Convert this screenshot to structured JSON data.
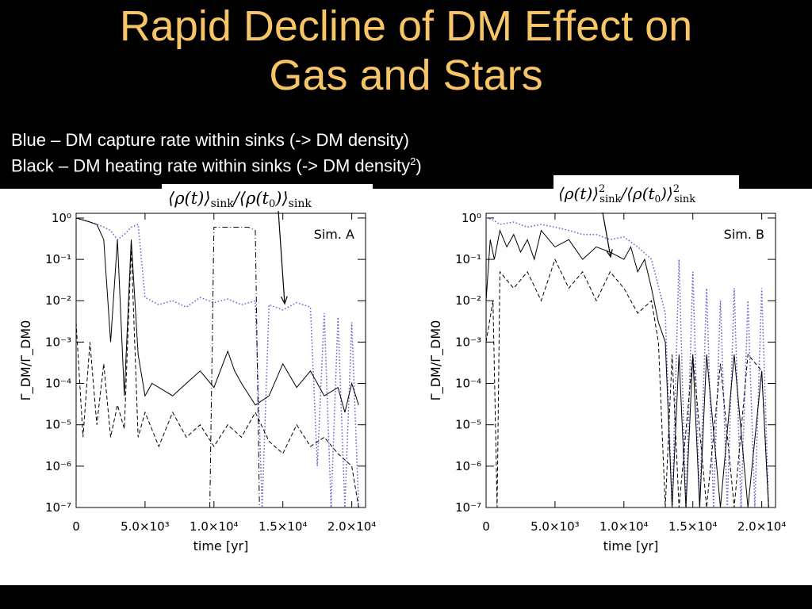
{
  "slide": {
    "title_line1": "Rapid Decline of DM Effect on",
    "title_line2": "Gas and Stars",
    "legend_blue": "Blue  – DM capture rate within sinks (-> DM density)",
    "legend_black_pre": "Black – DM  heating rate within sinks (-> DM density",
    "legend_black_sup": "2",
    "legend_black_post": ")",
    "formula_left": "⟨ρ(t)⟩sink/⟨ρ(t0)⟩sink",
    "formula_right": "⟨ρ(t)⟩²sink/⟨ρ(t0)⟩²sink"
  },
  "colors": {
    "title": "#f7c566",
    "blue_series": "#5b5bd6",
    "black_series": "#000000"
  },
  "chart_data": [
    {
      "type": "line",
      "panel_label": "Sim. A",
      "xlabel": "time [yr]",
      "ylabel": "Γ_DM/Γ_DM0",
      "y_scale": "log",
      "xlim": [
        0,
        21000
      ],
      "ylim": [
        1e-07,
        1.3
      ],
      "x_ticks": [
        "0",
        "5.0×10³",
        "1.0×10⁴",
        "1.5×10⁴",
        "2.0×10⁴"
      ],
      "y_ticks": [
        "10⁰",
        "10⁻¹",
        "10⁻²",
        "10⁻³",
        "10⁻⁴",
        "10⁻⁵",
        "10⁻⁶",
        "10⁻⁷"
      ],
      "series": [
        {
          "style": "dotted-blue",
          "x": [
            0,
            500,
            1000,
            1500,
            2000,
            2500,
            3000,
            3500,
            4000,
            4500,
            5000,
            6000,
            7000,
            8000,
            9000,
            10000,
            11000,
            12000,
            13000,
            13500,
            14000,
            15000,
            16000,
            17000,
            17500,
            18000,
            18500,
            19000,
            19500,
            20000,
            20500
          ],
          "y": [
            1,
            0.9,
            0.8,
            0.7,
            0.6,
            0.5,
            0.3,
            0.4,
            0.6,
            0.7,
            0.012,
            0.008,
            0.01,
            0.007,
            0.012,
            0.009,
            0.011,
            0.008,
            0.01,
            1e-07,
            0.008,
            0.006,
            0.009,
            0.007,
            1e-06,
            0.005,
            1e-07,
            0.004,
            1e-07,
            0.003,
            1e-07
          ]
        },
        {
          "style": "solid",
          "x": [
            0,
            1000,
            1500,
            2000,
            2500,
            3000,
            3500,
            4000,
            4500,
            5000,
            5500,
            6000,
            7000,
            8000,
            9000,
            10000,
            11000,
            11500,
            12000,
            13000,
            14000,
            15000,
            16000,
            17000,
            18000,
            19000,
            19500,
            20000,
            20500
          ],
          "y": [
            1,
            0.8,
            0.7,
            0.3,
            0.001,
            0.3,
            5e-05,
            0.3,
            0.0005,
            5e-05,
            0.0001,
            8e-05,
            5e-05,
            0.0001,
            0.0002,
            8e-05,
            0.0006,
            0.0002,
            0.0001,
            3e-05,
            5e-05,
            0.0003,
            8e-05,
            0.0002,
            5e-05,
            8e-05,
            2e-05,
            0.0001,
            3e-05
          ]
        },
        {
          "style": "dashed",
          "x": [
            0,
            500,
            1000,
            1500,
            2000,
            2500,
            3000,
            3500,
            4000,
            4500,
            5000,
            6000,
            7000,
            8000,
            9000,
            10000,
            11000,
            12000,
            13000,
            14000,
            15000,
            16000,
            17000,
            18000,
            19000,
            20000,
            20500
          ],
          "y": [
            0.003,
            5e-06,
            0.001,
            1e-05,
            0.0003,
            5e-06,
            3e-05,
            8e-06,
            0.2,
            5e-06,
            2e-05,
            3e-06,
            2e-05,
            5e-06,
            1e-05,
            3e-06,
            1e-05,
            5e-06,
            2e-05,
            4e-06,
            2e-06,
            1e-05,
            3e-06,
            5e-06,
            2e-06,
            1e-06,
            1e-07
          ]
        },
        {
          "style": "dash-dot",
          "x": [
            9700,
            10000,
            10500,
            11500,
            12500,
            13000,
            13300
          ],
          "y": [
            1e-07,
            0.6,
            0.6,
            0.6,
            0.6,
            0.5,
            1e-07
          ]
        }
      ]
    },
    {
      "type": "line",
      "panel_label": "Sim. B",
      "xlabel": "time [yr]",
      "ylabel": "Γ_DM/Γ_DM0",
      "y_scale": "log",
      "xlim": [
        0,
        21000
      ],
      "ylim": [
        1e-07,
        1.3
      ],
      "x_ticks": [
        "0",
        "5.0×10³",
        "1.0×10⁴",
        "1.5×10⁴",
        "2.0×10⁴"
      ],
      "y_ticks": [
        "10⁰",
        "10⁻¹",
        "10⁻²",
        "10⁻³",
        "10⁻⁴",
        "10⁻⁵",
        "10⁻⁶",
        "10⁻⁷"
      ],
      "series": [
        {
          "style": "dotted-blue",
          "x": [
            0,
            500,
            1000,
            2000,
            3000,
            4000,
            5000,
            6000,
            7000,
            8000,
            9000,
            10000,
            11000,
            12000,
            13000,
            13500,
            14000,
            14500,
            15000,
            15500,
            16000,
            16500,
            17000,
            17500,
            18000,
            18500,
            19000,
            19500,
            20000,
            20500
          ],
          "y": [
            1,
            0.9,
            0.7,
            0.8,
            0.6,
            0.7,
            0.6,
            0.5,
            0.4,
            0.4,
            0.3,
            0.35,
            0.2,
            0.1,
            0.005,
            1e-07,
            0.1,
            1e-07,
            0.05,
            1e-07,
            0.02,
            1e-07,
            0.01,
            1e-07,
            0.02,
            1e-07,
            0.01,
            1e-07,
            0.02,
            1e-07
          ]
        },
        {
          "style": "solid",
          "x": [
            0,
            300,
            600,
            1000,
            1500,
            2000,
            2500,
            3000,
            3500,
            4000,
            5000,
            6000,
            7000,
            8000,
            9000,
            10000,
            10500,
            11000,
            11500,
            12000,
            12500,
            13000,
            13500,
            14000,
            14500,
            15000,
            15500,
            16000,
            17000,
            18000,
            19000,
            20000,
            20500
          ],
          "y": [
            0.01,
            0.3,
            0.1,
            0.5,
            0.2,
            0.4,
            0.15,
            0.3,
            0.1,
            0.5,
            0.2,
            0.3,
            0.1,
            0.2,
            0.15,
            0.1,
            0.2,
            0.05,
            0.1,
            0.02,
            0.003,
            0.001,
            1e-07,
            0.0005,
            1e-07,
            0.0005,
            1e-07,
            0.0005,
            1e-07,
            0.0005,
            1e-07,
            0.0002,
            1e-07
          ]
        },
        {
          "style": "dashed",
          "x": [
            0,
            500,
            800,
            1000,
            2000,
            3000,
            4000,
            5000,
            6000,
            7000,
            8000,
            9000,
            10000,
            11000,
            12000,
            12500,
            13000,
            13500,
            14000,
            15000,
            16000,
            17000,
            18000,
            19000,
            20000,
            20500
          ],
          "y": [
            0.001,
            0.01,
            1e-07,
            0.05,
            0.02,
            0.05,
            0.01,
            0.1,
            0.02,
            0.05,
            0.01,
            0.05,
            0.02,
            0.005,
            0.01,
            0.001,
            1e-07,
            0.0005,
            1e-07,
            0.0005,
            1e-07,
            0.0003,
            1e-07,
            0.0005,
            0.0002,
            1e-07
          ]
        }
      ]
    }
  ]
}
